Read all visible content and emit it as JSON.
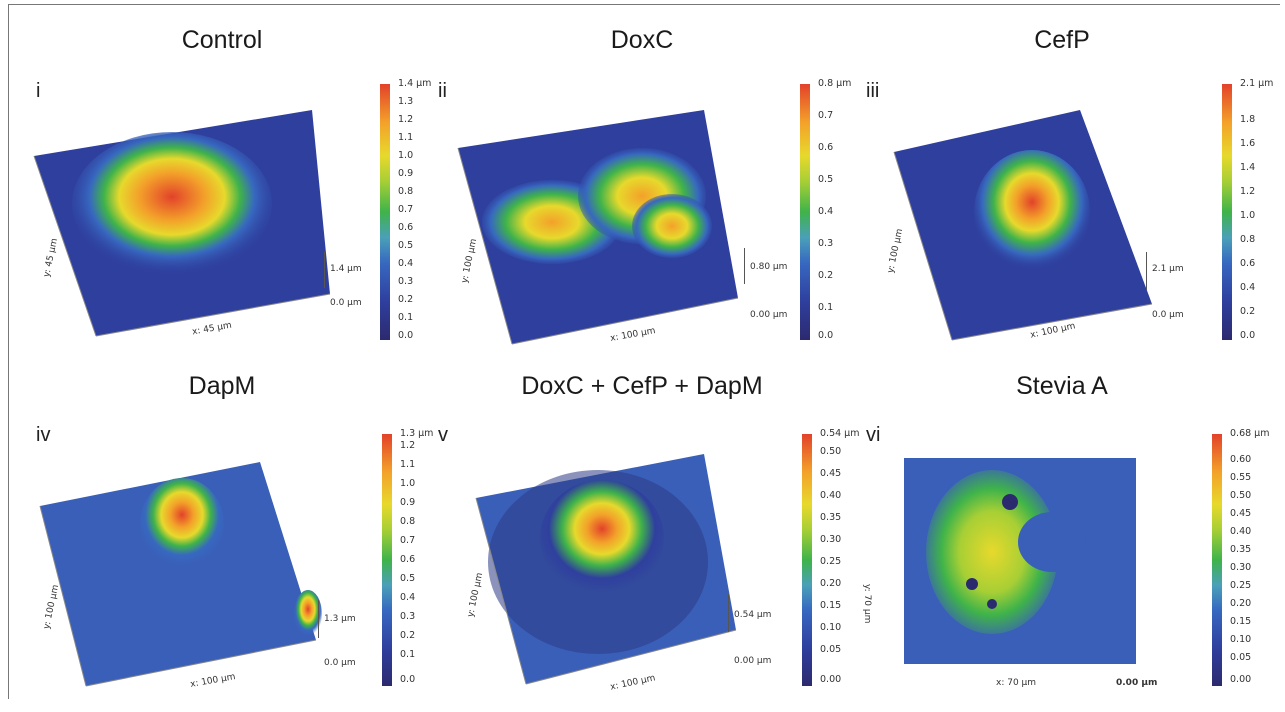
{
  "panels": [
    {
      "roman": "i",
      "title": "Control",
      "x_label": "x: 45 µm",
      "y_label": "y: 45 µm",
      "z_top": "1.4 µm",
      "z_bottom": "0.0 µm",
      "ticks": [
        "1.4 µm",
        "1.3",
        "1.2",
        "1.1",
        "1.0",
        "0.9",
        "0.8",
        "0.7",
        "0.6",
        "0.5",
        "0.4",
        "0.3",
        "0.2",
        "0.1",
        "0.0"
      ]
    },
    {
      "roman": "ii",
      "title": "DoxC",
      "x_label": "x: 100 µm",
      "y_label": "y: 100 µm",
      "z_top": "0.80 µm",
      "z_bottom": "0.00 µm",
      "ticks": [
        "0.8 µm",
        "0.7",
        "0.6",
        "0.5",
        "0.4",
        "0.3",
        "0.2",
        "0.1",
        "0.0"
      ]
    },
    {
      "roman": "iii",
      "title": "CefP",
      "x_label": "x: 100 µm",
      "y_label": "y: 100 µm",
      "z_top": "2.1 µm",
      "z_bottom": "0.0 µm",
      "ticks": [
        "2.1 µm",
        "1.8",
        "1.6",
        "1.4",
        "1.2",
        "1.0",
        "0.8",
        "0.6",
        "0.4",
        "0.2",
        "0.0"
      ]
    },
    {
      "roman": "iv",
      "title": "DapM",
      "x_label": "x: 100 µm",
      "y_label": "y: 100 µm",
      "z_top": "1.3 µm",
      "z_bottom": "0.0 µm",
      "ticks": [
        "1.3 µm",
        "1.2",
        "1.1",
        "1.0",
        "0.9",
        "0.8",
        "0.7",
        "0.6",
        "0.5",
        "0.4",
        "0.3",
        "0.2",
        "0.1",
        "0.0"
      ]
    },
    {
      "roman": "v",
      "title": "DoxC + CefP + DapM",
      "x_label": "x: 100 µm",
      "y_label": "y: 100 µm",
      "z_top": "0.54 µm",
      "z_bottom": "0.00 µm",
      "ticks": [
        "0.54 µm",
        "0.50",
        "0.45",
        "0.40",
        "0.35",
        "0.30",
        "0.25",
        "0.20",
        "0.15",
        "0.10",
        "0.05",
        "0.00"
      ]
    },
    {
      "roman": "vi",
      "title": "Stevia A",
      "x_label": "x: 70 µm",
      "y_label": "y: 70 µm",
      "z_top": "",
      "z_bottom": "0.00 µm",
      "ticks": [
        "0.68 µm",
        "0.60",
        "0.55",
        "0.50",
        "0.45",
        "0.40",
        "0.35",
        "0.30",
        "0.25",
        "0.20",
        "0.15",
        "0.10",
        "0.05",
        "0.00"
      ]
    }
  ],
  "colors": {
    "low": "#2c2a6e",
    "mid_low": "#3768c0",
    "mid": "#3fb34a",
    "mid_high": "#e7d92c",
    "high": "#e2422a"
  }
}
